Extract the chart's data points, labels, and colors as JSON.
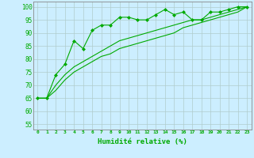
{
  "xlabel": "Humidité relative (%)",
  "background_color": "#cceeff",
  "grid_color": "#b0cccc",
  "line_color": "#00aa00",
  "xlim": [
    -0.5,
    23.5
  ],
  "ylim": [
    53,
    102
  ],
  "yticks": [
    55,
    60,
    65,
    70,
    75,
    80,
    85,
    90,
    95,
    100
  ],
  "xticks": [
    0,
    1,
    2,
    3,
    4,
    5,
    6,
    7,
    8,
    9,
    10,
    11,
    12,
    13,
    14,
    15,
    16,
    17,
    18,
    19,
    20,
    21,
    22,
    23
  ],
  "series1_x": [
    0,
    1,
    2,
    3,
    4,
    5,
    6,
    7,
    8,
    9,
    10,
    11,
    12,
    13,
    14,
    15,
    16,
    17,
    18,
    19,
    20,
    21,
    22,
    23
  ],
  "series1_y": [
    65,
    65,
    74,
    78,
    87,
    84,
    91,
    93,
    93,
    96,
    96,
    95,
    95,
    97,
    99,
    97,
    98,
    95,
    95,
    98,
    98,
    99,
    100,
    100
  ],
  "series2_x": [
    0,
    1,
    2,
    3,
    4,
    5,
    6,
    7,
    8,
    9,
    10,
    11,
    12,
    13,
    14,
    15,
    16,
    17,
    18,
    19,
    20,
    21,
    22,
    23
  ],
  "series2_y": [
    65,
    65,
    68,
    72,
    75,
    77,
    79,
    81,
    82,
    84,
    85,
    86,
    87,
    88,
    89,
    90,
    92,
    93,
    94,
    95,
    96,
    97,
    98,
    100
  ],
  "series3_x": [
    0,
    1,
    2,
    3,
    4,
    5,
    6,
    7,
    8,
    9,
    10,
    11,
    12,
    13,
    14,
    15,
    16,
    17,
    18,
    19,
    20,
    21,
    22,
    23
  ],
  "series3_y": [
    65,
    65,
    70,
    74,
    77,
    79,
    81,
    83,
    85,
    87,
    88,
    89,
    90,
    91,
    92,
    93,
    94,
    95,
    95,
    96,
    97,
    98,
    99,
    100
  ]
}
